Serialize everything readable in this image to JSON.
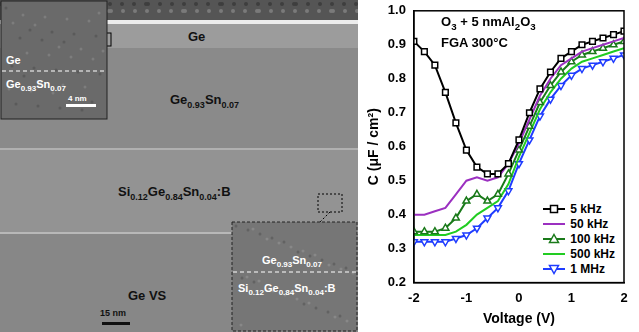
{
  "image_panel": {
    "layers": [
      "Ge",
      "Ge0.93Sn0.07",
      "Si0.12Ge0.84Sn0.04:B",
      "Ge VS"
    ],
    "scale_bar": "15 nm",
    "insets": [
      {
        "labels": [
          "Ge",
          "Ge0.93Sn0.07"
        ],
        "scale_bar": "4 nm"
      },
      {
        "labels": [
          "Ge0.93Sn0.07",
          "Si0.12Ge0.84Sn0.04:B"
        ]
      }
    ]
  },
  "chart_data": {
    "type": "line",
    "annotations": [
      "O3 + 5 nmAl2O3",
      "FGA 300°C"
    ],
    "x_label": "Voltage (V)",
    "y_label": "C (μF / cm²)",
    "x": [
      -2,
      -1.8,
      -1.6,
      -1.4,
      -1.2,
      -1,
      -0.8,
      -0.6,
      -0.4,
      -0.2,
      0,
      0.2,
      0.4,
      0.6,
      0.8,
      1,
      1.2,
      1.4,
      1.6,
      1.8,
      2
    ],
    "series": [
      {
        "name": "5 kHz",
        "color": "#000000",
        "marker": "square",
        "values": [
          0.91,
          0.88,
          0.84,
          0.76,
          0.67,
          0.59,
          0.54,
          0.52,
          0.52,
          0.55,
          0.62,
          0.7,
          0.77,
          0.82,
          0.86,
          0.88,
          0.9,
          0.91,
          0.92,
          0.93,
          0.94
        ]
      },
      {
        "name": "50 kHz",
        "color": "#9b30c0",
        "marker": "none",
        "values": [
          0.4,
          0.4,
          0.41,
          0.42,
          0.46,
          0.5,
          0.51,
          0.5,
          0.51,
          0.55,
          0.61,
          0.68,
          0.75,
          0.8,
          0.84,
          0.86,
          0.88,
          0.89,
          0.9,
          0.91,
          0.92
        ]
      },
      {
        "name": "100 kHz",
        "color": "#1a7a1a",
        "marker": "triangle",
        "values": [
          0.35,
          0.35,
          0.35,
          0.36,
          0.39,
          0.44,
          0.46,
          0.44,
          0.46,
          0.52,
          0.59,
          0.66,
          0.73,
          0.78,
          0.82,
          0.85,
          0.87,
          0.88,
          0.89,
          0.9,
          0.91
        ]
      },
      {
        "name": "500 kHz",
        "color": "#22cc22",
        "marker": "none",
        "values": [
          0.34,
          0.34,
          0.34,
          0.34,
          0.35,
          0.37,
          0.4,
          0.42,
          0.44,
          0.49,
          0.57,
          0.64,
          0.71,
          0.76,
          0.8,
          0.83,
          0.85,
          0.86,
          0.87,
          0.88,
          0.89
        ]
      },
      {
        "name": "1 MHz",
        "color": "#1f3cff",
        "marker": "triangle_down",
        "values": [
          0.32,
          0.32,
          0.32,
          0.32,
          0.33,
          0.34,
          0.36,
          0.39,
          0.42,
          0.47,
          0.55,
          0.62,
          0.69,
          0.74,
          0.78,
          0.81,
          0.83,
          0.84,
          0.85,
          0.86,
          0.87
        ]
      }
    ],
    "xlim": [
      -2,
      2
    ],
    "xticks": [
      -2,
      -1,
      0,
      1,
      2
    ],
    "ylim": [
      0.2,
      1.0
    ],
    "yticks": [
      0.2,
      0.3,
      0.4,
      0.5,
      0.6,
      0.7,
      0.8,
      0.9,
      {
        "value": 1.0,
        "label": "1.0"
      }
    ],
    "legend": "lower right",
    "grid": false
  }
}
